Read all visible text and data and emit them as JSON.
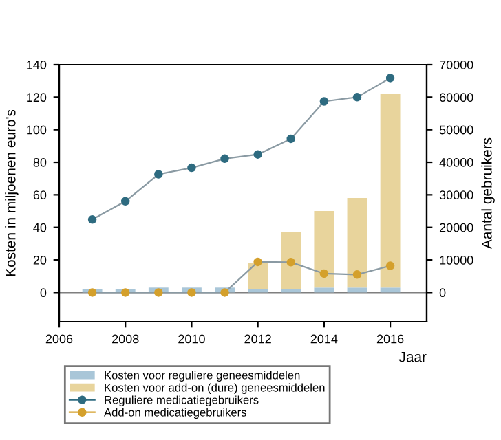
{
  "chart_data": {
    "type": "bar",
    "xlabel": "Jaar",
    "ylabel": "Kosten in miljoenen euro's",
    "y2label": "Aantal gebruikers",
    "x": [
      2007,
      2008,
      2009,
      2010,
      2011,
      2012,
      2013,
      2014,
      2015,
      2016
    ],
    "stacked": true,
    "series": [
      {
        "name": "Kosten voor reguliere geneesmiddelen",
        "color": "#a9c6d8",
        "values": [
          2,
          2,
          3,
          3,
          3,
          2,
          2,
          3,
          3,
          3
        ]
      },
      {
        "name": "Kosten voor add-on (dure) geneesmiddelen",
        "color": "#e8d49c",
        "values": [
          0,
          0,
          0,
          0,
          0,
          16,
          35,
          47,
          55,
          119
        ]
      },
      {
        "name": "Reguliere medicatiegebruikers",
        "type": "line",
        "axis": "y2",
        "color": "#2e6b80",
        "values": [
          22400,
          28000,
          36300,
          38300,
          41100,
          42400,
          47200,
          58700,
          60000,
          65900
        ]
      },
      {
        "name": "Add-on medicatiegebruikers",
        "type": "line",
        "axis": "y2",
        "color": "#d4a02c",
        "values": [
          0,
          0,
          0,
          0,
          0,
          9400,
          9300,
          5800,
          5500,
          8200
        ]
      }
    ],
    "xlim": [
      2006,
      2017.1
    ],
    "xticks": [
      2006,
      2008,
      2010,
      2012,
      2014,
      2016
    ],
    "ylim": [
      -18,
      140
    ],
    "yticks": [
      0,
      20,
      40,
      60,
      80,
      100,
      120,
      140
    ],
    "y2lim": [
      -9000,
      70000
    ],
    "y2ticks": [
      0,
      10000,
      20000,
      30000,
      40000,
      50000,
      60000,
      70000
    ],
    "ref_lines": [
      {
        "axis": "y",
        "value": 0,
        "color": "#7f7f7f"
      }
    ],
    "marker": "circle",
    "line_style": "solid",
    "grid": false,
    "legend": "bottom"
  }
}
